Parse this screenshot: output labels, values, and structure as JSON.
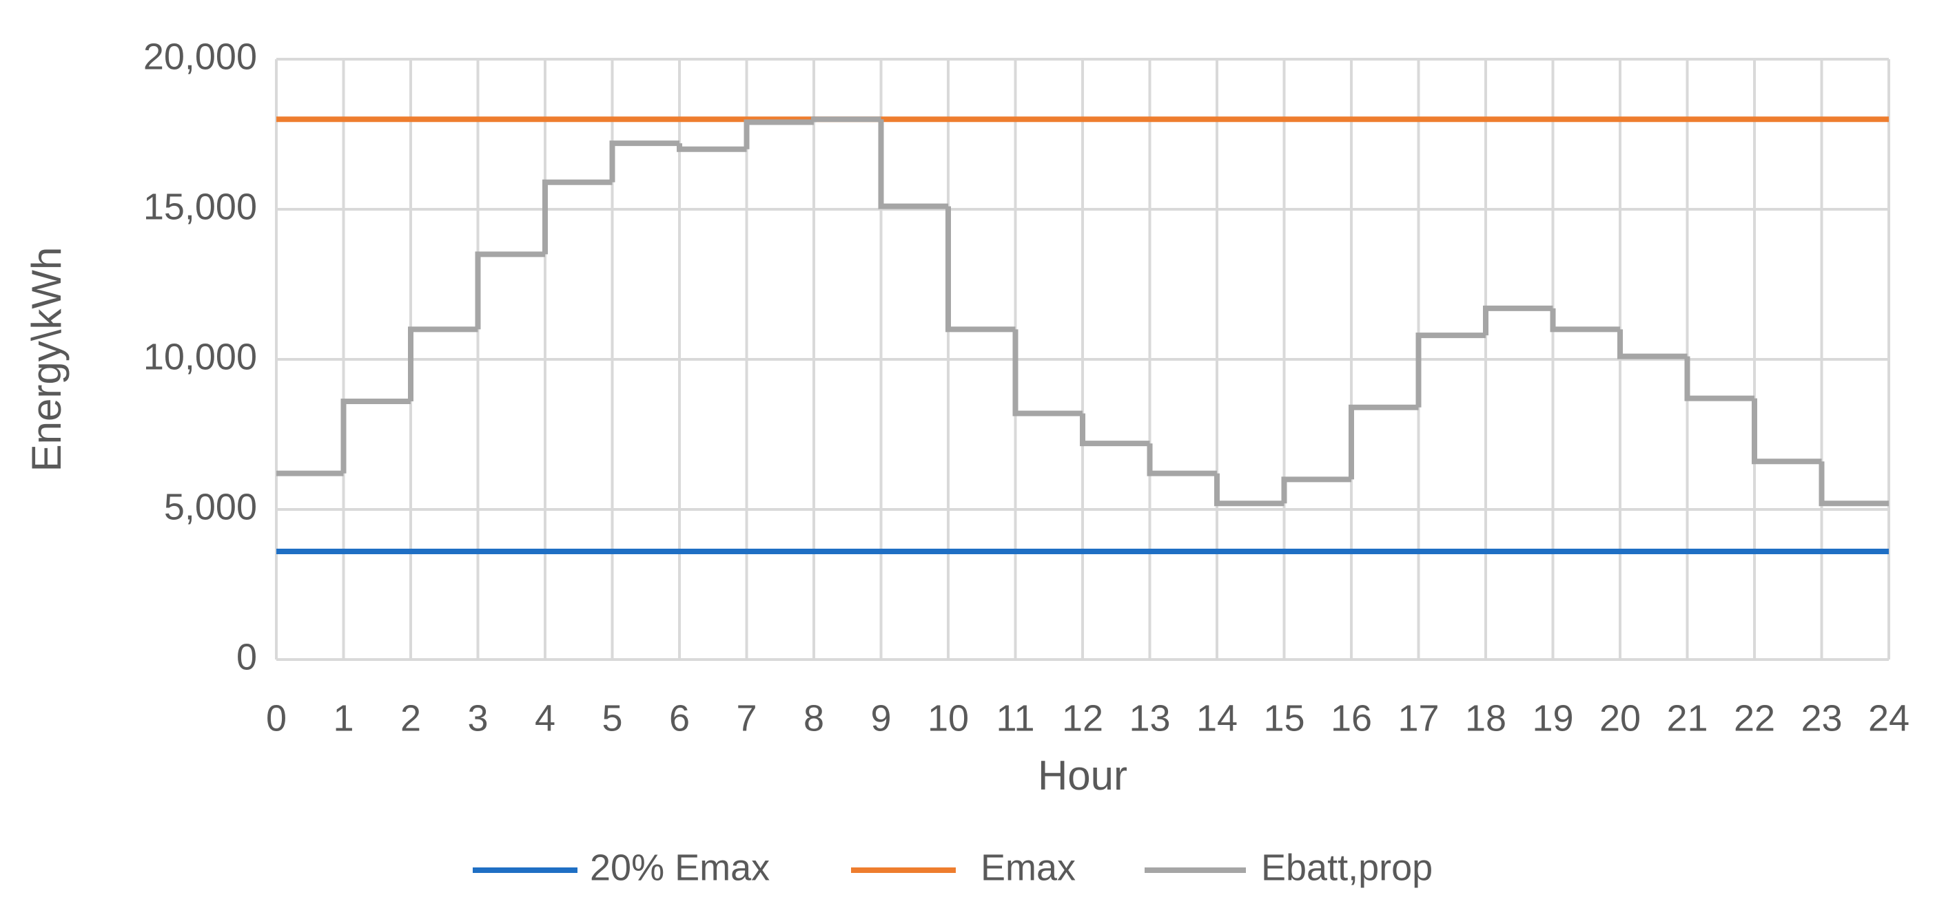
{
  "chart_data": {
    "type": "step",
    "x_label": "Hour",
    "y_label": "Energy\\kWh",
    "x": [
      0,
      1,
      2,
      3,
      4,
      5,
      6,
      7,
      8,
      9,
      10,
      11,
      12,
      13,
      14,
      15,
      16,
      17,
      18,
      19,
      20,
      21,
      22,
      23
    ],
    "series": [
      {
        "name": "20% Emax",
        "color": "#1f6fc4",
        "values": [
          3600,
          3600,
          3600,
          3600,
          3600,
          3600,
          3600,
          3600,
          3600,
          3600,
          3600,
          3600,
          3600,
          3600,
          3600,
          3600,
          3600,
          3600,
          3600,
          3600,
          3600,
          3600,
          3600,
          3600
        ]
      },
      {
        "name": "Emax",
        "color": "#ee7d2e",
        "values": [
          18000,
          18000,
          18000,
          18000,
          18000,
          18000,
          18000,
          18000,
          18000,
          18000,
          18000,
          18000,
          18000,
          18000,
          18000,
          18000,
          18000,
          18000,
          18000,
          18000,
          18000,
          18000,
          18000,
          18000
        ]
      },
      {
        "name": "Ebatt,prop",
        "color": "#a5a5a5",
        "values": [
          6200,
          8600,
          11000,
          13500,
          15900,
          17200,
          17000,
          17900,
          18000,
          15100,
          11000,
          8200,
          7200,
          6200,
          5200,
          6000,
          8400,
          10800,
          11700,
          11000,
          10100,
          8700,
          6600,
          5200
        ]
      }
    ],
    "xlim": [
      0,
      24
    ],
    "xticks": [
      0,
      1,
      2,
      3,
      4,
      5,
      6,
      7,
      8,
      9,
      10,
      11,
      12,
      13,
      14,
      15,
      16,
      17,
      18,
      19,
      20,
      21,
      22,
      23,
      24
    ],
    "ylim": [
      0,
      20000
    ],
    "yticks": [
      0,
      {
        "value": 5000,
        "label": "5,000"
      },
      {
        "value": 10000,
        "label": "10,000"
      },
      {
        "value": 15000,
        "label": "15,000"
      },
      {
        "value": 20000,
        "label": "20,000"
      }
    ],
    "grid": true,
    "legend": "bottom"
  }
}
